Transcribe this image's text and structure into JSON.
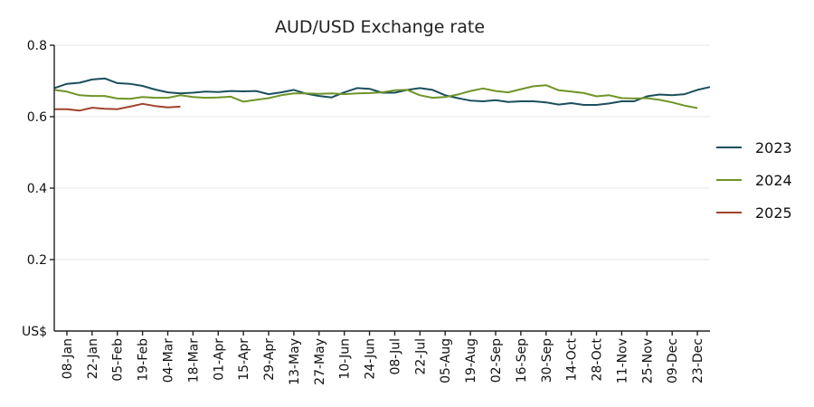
{
  "chart_data": {
    "type": "line",
    "title": "AUD/USD Exchange rate",
    "ylabel_unit": "US$",
    "ylim": [
      0.0,
      0.8
    ],
    "yticks": [
      "0.8",
      "0.6",
      "0.4",
      "0.2"
    ],
    "y_tick_values": [
      0.8,
      0.6,
      0.4,
      0.2
    ],
    "grid": true,
    "legend_position": "right",
    "x_tick_labels": [
      "08-Jan",
      "22-Jan",
      "05-Feb",
      "19-Feb",
      "04-Mar",
      "18-Mar",
      "01-Apr",
      "15-Apr",
      "29-Apr",
      "13-May",
      "27-May",
      "10-Jun",
      "24-Jun",
      "08-Jul",
      "22-Jul",
      "05-Aug",
      "19-Aug",
      "02-Sep",
      "16-Sep",
      "30-Sep",
      "14-Oct",
      "28-Oct",
      "11-Nov",
      "25-Nov",
      "09-Dec",
      "23-Dec"
    ],
    "x_weeks": [
      "01-Jan",
      "08-Jan",
      "15-Jan",
      "22-Jan",
      "29-Jan",
      "05-Feb",
      "12-Feb",
      "19-Feb",
      "26-Feb",
      "04-Mar",
      "11-Mar",
      "18-Mar",
      "25-Mar",
      "01-Apr",
      "08-Apr",
      "15-Apr",
      "22-Apr",
      "29-Apr",
      "06-May",
      "13-May",
      "20-May",
      "27-May",
      "03-Jun",
      "10-Jun",
      "17-Jun",
      "24-Jun",
      "01-Jul",
      "08-Jul",
      "15-Jul",
      "22-Jul",
      "29-Jul",
      "05-Aug",
      "12-Aug",
      "19-Aug",
      "26-Aug",
      "02-Sep",
      "09-Sep",
      "16-Sep",
      "23-Sep",
      "30-Sep",
      "07-Oct",
      "14-Oct",
      "21-Oct",
      "28-Oct",
      "04-Nov",
      "11-Nov",
      "18-Nov",
      "25-Nov",
      "02-Dec",
      "09-Dec",
      "16-Dec",
      "23-Dec",
      "30-Dec"
    ],
    "series": [
      {
        "name": "2023",
        "color": "#1b4f5c",
        "values": [
          0.68,
          0.692,
          0.695,
          0.704,
          0.707,
          0.694,
          0.692,
          0.686,
          0.676,
          0.668,
          0.665,
          0.667,
          0.67,
          0.669,
          0.672,
          0.671,
          0.672,
          0.663,
          0.668,
          0.675,
          0.664,
          0.658,
          0.654,
          0.668,
          0.68,
          0.678,
          0.667,
          0.667,
          0.675,
          0.68,
          0.675,
          0.66,
          0.652,
          0.645,
          0.643,
          0.646,
          0.641,
          0.643,
          0.643,
          0.64,
          0.634,
          0.638,
          0.633,
          0.633,
          0.637,
          0.643,
          0.643,
          0.657,
          0.662,
          0.66,
          0.663,
          0.675,
          0.683
        ]
      },
      {
        "name": "2024",
        "color": "#6f9428",
        "values": [
          0.675,
          0.67,
          0.66,
          0.658,
          0.658,
          0.651,
          0.65,
          0.655,
          0.653,
          0.653,
          0.66,
          0.655,
          0.653,
          0.654,
          0.656,
          0.642,
          0.647,
          0.652,
          0.66,
          0.665,
          0.665,
          0.664,
          0.665,
          0.663,
          0.665,
          0.666,
          0.668,
          0.674,
          0.675,
          0.66,
          0.653,
          0.655,
          0.662,
          0.672,
          0.679,
          0.672,
          0.668,
          0.677,
          0.685,
          0.688,
          0.674,
          0.67,
          0.666,
          0.657,
          0.66,
          0.652,
          0.651,
          0.652,
          0.647,
          0.64,
          0.631,
          0.624
        ]
      },
      {
        "name": "2025",
        "color": "#a0432c",
        "values": [
          0.621,
          0.621,
          0.617,
          0.625,
          0.622,
          0.621,
          0.628,
          0.636,
          0.63,
          0.626,
          0.628
        ]
      }
    ]
  }
}
